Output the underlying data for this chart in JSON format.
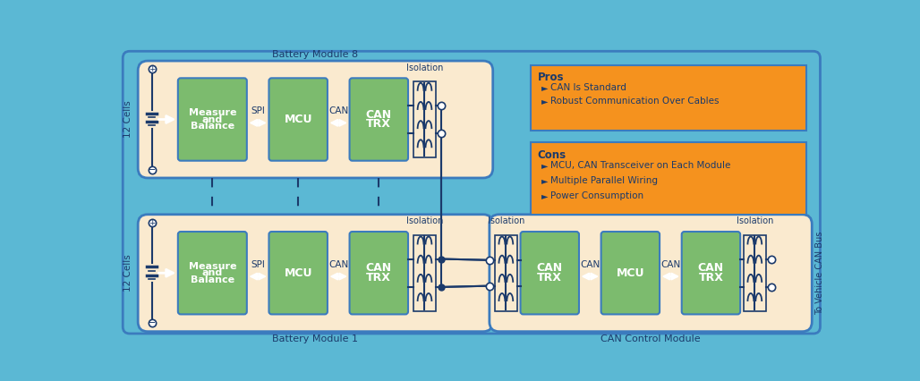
{
  "bg_color": "#5BB8D4",
  "module_fill": "#FAEACF",
  "green_fill": "#7CBB6E",
  "orange_fill": "#F5921E",
  "dark_blue": "#1B3A6B",
  "mid_blue": "#3B7BBE",
  "wire_color": "#1B3A6B",
  "white": "#FFFFFF",
  "pros_title": "Pros",
  "pros_items": [
    "CAN Is Standard",
    "Robust Communication Over Cables"
  ],
  "cons_title": "Cons",
  "cons_items": [
    "MCU, CAN Transceiver on Each Module",
    "Multiple Parallel Wiring",
    "Power Consumption"
  ],
  "module8_label": "Battery Module 8",
  "module1_label": "Battery Module 1",
  "can_ctrl_label": "CAN Control Module",
  "cells_label": "12 Cells",
  "to_vehicle_label": "To Vehicle CAN Bus",
  "isolation_label": "Isolation"
}
